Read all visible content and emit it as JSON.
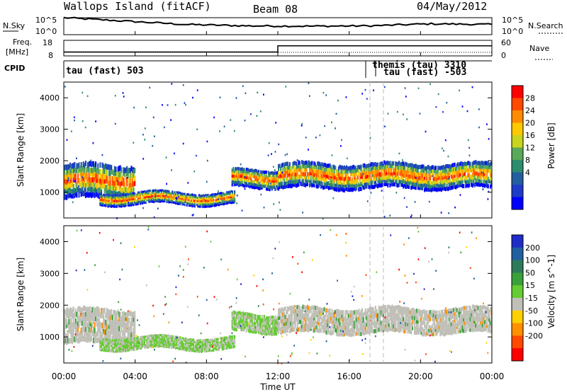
{
  "header": {
    "station": "Wallops Island (fitACF)",
    "beam": "Beam 08",
    "date": "04/May/2012"
  },
  "noise_panel": {
    "left_label": "N.Sky",
    "right_label": "N.Search",
    "left_ticks": [
      "10^5",
      "10^0"
    ],
    "right_ticks": [
      "10^5",
      "10^0"
    ]
  },
  "freq_panel": {
    "left_label_1": "Freq.",
    "left_label_2": "[MHz]",
    "right_label": "Nave",
    "left_ticks": [
      "18",
      "8"
    ],
    "right_ticks": [
      "60",
      "0"
    ]
  },
  "cpid_panel": {
    "label": "CPID",
    "entries": [
      {
        "text": "tau (fast) 503",
        "start_hour": 0
      },
      {
        "text": "themis (tau) 3310",
        "start_hour": 17.4
      },
      {
        "text": "tau (fast) -503",
        "start_hour": 18.0
      }
    ]
  },
  "power_panel": {
    "ylabel": "Slant Range [km]",
    "yticks": [
      "4000",
      "3000",
      "2000",
      "1000"
    ],
    "colorbar_label": "Power [dB]",
    "colorbar_ticks": [
      "28",
      "24",
      "20",
      "16",
      "12",
      "8",
      "4"
    ],
    "colors": [
      "#ff0000",
      "#ff4a00",
      "#ff8c00",
      "#ffc800",
      "#c8d41e",
      "#5aa85a",
      "#2e8c6e",
      "#235fa0",
      "#1e3cc8",
      "#0000ff"
    ]
  },
  "velocity_panel": {
    "ylabel": "Slant Range [km]",
    "yticks": [
      "4000",
      "3000",
      "2000",
      "1000"
    ],
    "colorbar_label": "Velocity [m s^-1]",
    "colorbar_ticks": [
      "200",
      "100",
      "50",
      "15",
      "-15",
      "-50",
      "-100",
      "-200"
    ],
    "colors": [
      "#1e2cc8",
      "#2060a0",
      "#2e7a5a",
      "#3aa03a",
      "#66cc33",
      "#c0c0b8",
      "#ffd000",
      "#ff9000",
      "#ff4a00",
      "#ff0000"
    ]
  },
  "x_axis": {
    "label": "Time UT",
    "ticks": [
      "00:00",
      "04:00",
      "08:00",
      "12:00",
      "16:00",
      "20:00",
      "00:00"
    ]
  },
  "chart_data": {
    "type": "heatmap",
    "x_unit": "hours UT",
    "x_range": [
      0,
      24
    ],
    "y_range_km": [
      180,
      4500
    ],
    "bands": [
      {
        "name": "morning-arc",
        "t": [
          0,
          4
        ],
        "range_km": [
          900,
          2000
        ],
        "power_db": 24,
        "velocity": -15
      },
      {
        "name": "low-range-echo",
        "t": [
          2,
          9.6
        ],
        "range_km": [
          650,
          1050
        ],
        "power_db": 28,
        "velocity": 15
      },
      {
        "name": "band-9-12",
        "t": [
          9.4,
          12
        ],
        "range_km": [
          1200,
          1800
        ],
        "power_db": 20,
        "velocity": 15
      },
      {
        "name": "afternoon-band",
        "t": [
          12,
          24
        ],
        "range_km": [
          1200,
          2000
        ],
        "power_db": 20,
        "velocity": -15
      }
    ],
    "noise_sky": [
      5,
      4,
      3,
      2.6,
      2.5,
      2.6,
      3.2,
      3
    ],
    "freq_mhz": [
      {
        "t": [
          0,
          12
        ],
        "value": 10.5
      },
      {
        "t": [
          12,
          24
        ],
        "value": 14.5
      }
    ]
  }
}
